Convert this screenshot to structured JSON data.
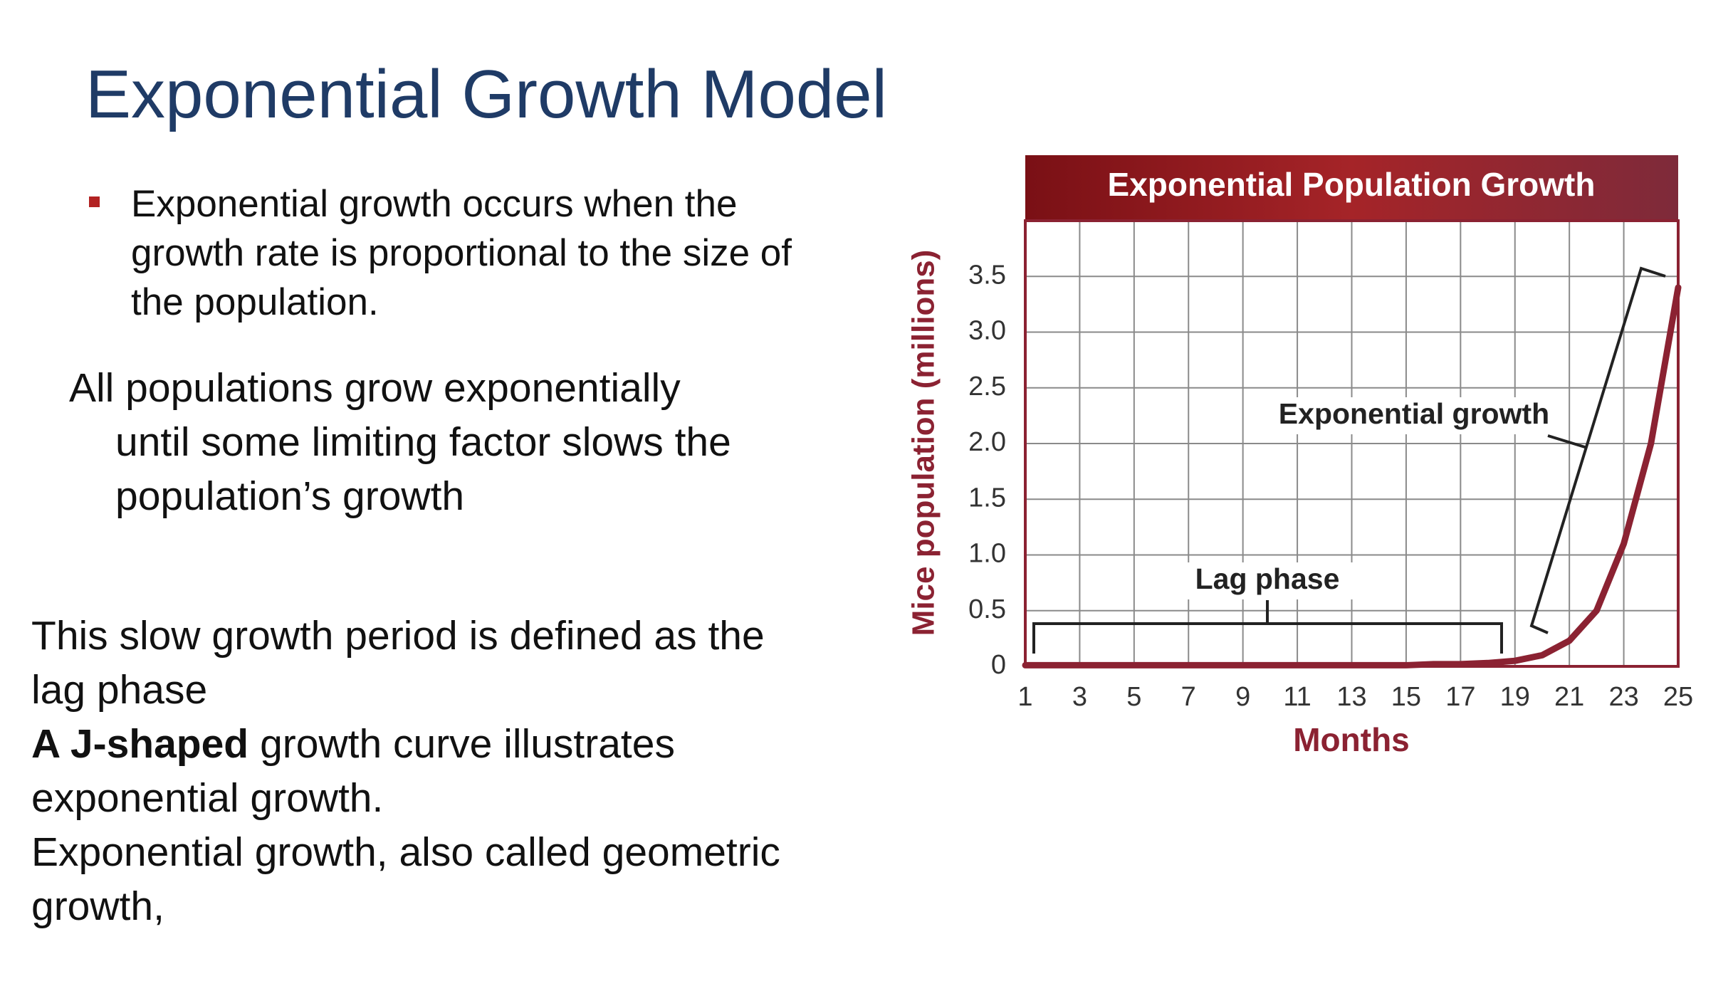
{
  "slide": {
    "title": "Exponential Growth Model",
    "bullet": [
      "Exponential growth occurs when the",
      "growth rate is proportional to the size of",
      "the population."
    ],
    "paragraph_1": [
      "All populations grow exponentially",
      "until some limiting factor slows the",
      "population’s growth"
    ],
    "paragraph_2": [
      "This slow growth period is defined as the",
      "lag phase"
    ],
    "j_shaped": {
      "bold": "A J-shaped",
      "text": "growth curve illustrates"
    },
    "paragraph_3": [
      "exponential growth.",
      "Exponential growth, also called geometric",
      "growth,"
    ]
  },
  "chart_data": {
    "type": "line",
    "title": "Exponential Population Growth",
    "x_label": "Months",
    "y_label": "Mice population (millions)",
    "x": [
      1,
      2,
      3,
      4,
      5,
      6,
      7,
      8,
      9,
      10,
      11,
      12,
      13,
      14,
      15,
      16,
      17,
      18,
      19,
      20,
      21,
      22,
      23,
      24,
      25
    ],
    "values": [
      0.01,
      0.01,
      0.01,
      0.01,
      0.01,
      0.01,
      0.01,
      0.01,
      0.01,
      0.01,
      0.01,
      0.01,
      0.01,
      0.01,
      0.01,
      0.02,
      0.02,
      0.03,
      0.05,
      0.1,
      0.23,
      0.5,
      1.1,
      2.0,
      3.4
    ],
    "color": "#8b2232",
    "xlim": [
      1,
      25
    ],
    "xticks": [
      1,
      3,
      5,
      7,
      9,
      11,
      13,
      15,
      17,
      19,
      21,
      23,
      25
    ],
    "ylim": [
      0,
      4
    ],
    "yticks": [
      0,
      0.5,
      {
        "value": 1,
        "label": "1.0"
      },
      1.5,
      {
        "value": 2,
        "label": "2.0"
      },
      2.5,
      {
        "value": 3,
        "label": "3.0"
      },
      3.5
    ],
    "grid": true,
    "annotations": [
      "Lag phase",
      "Exponential growth"
    ]
  }
}
